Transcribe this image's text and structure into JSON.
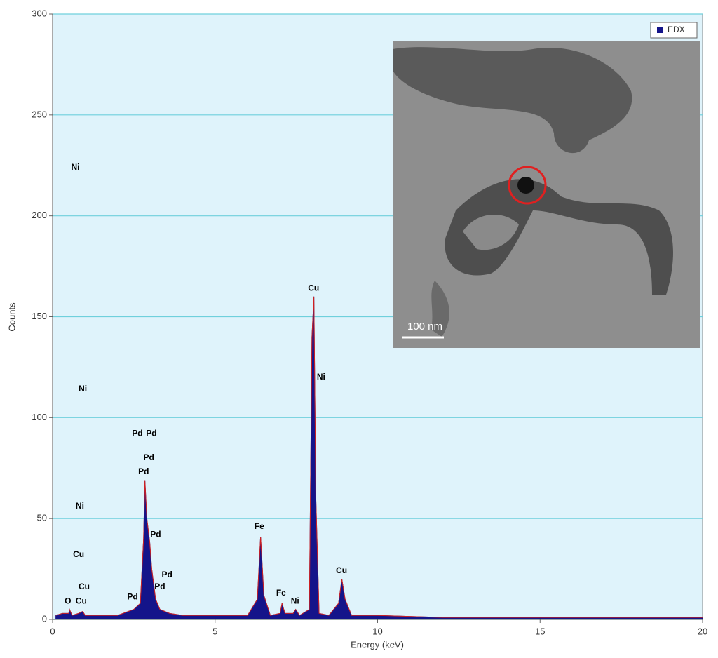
{
  "chart_data": {
    "type": "area",
    "x_label": "Energy (keV)",
    "y_label": "Counts",
    "xlim": [
      0,
      20
    ],
    "xticks": [
      0,
      5,
      10,
      15,
      20
    ],
    "ylim": [
      0,
      300
    ],
    "yticks": [
      0,
      50,
      100,
      150,
      200,
      250,
      300
    ],
    "grid": true,
    "legend": "top-right",
    "series": [
      {
        "name": "EDX",
        "color": "#14148a",
        "x": [
          0.1,
          0.3,
          0.5,
          0.52,
          0.6,
          0.8,
          0.93,
          1.0,
          1.5,
          2.0,
          2.5,
          2.7,
          2.8,
          2.84,
          2.9,
          2.99,
          3.05,
          3.17,
          3.3,
          3.6,
          4.0,
          5.0,
          6.0,
          6.3,
          6.4,
          6.5,
          6.7,
          7.0,
          7.06,
          7.15,
          7.4,
          7.48,
          7.6,
          7.9,
          7.98,
          8.04,
          8.1,
          8.2,
          8.5,
          8.8,
          8.9,
          9.0,
          9.2,
          10,
          12,
          14,
          16,
          18,
          20
        ],
        "values": [
          2,
          3,
          3,
          5,
          2,
          3,
          4,
          2,
          2,
          2,
          5,
          8,
          40,
          69,
          50,
          38,
          25,
          10,
          5,
          3,
          2,
          2,
          2,
          10,
          41,
          12,
          2,
          3,
          8,
          3,
          3,
          5,
          2,
          5,
          140,
          160,
          60,
          3,
          2,
          8,
          20,
          10,
          2,
          2,
          1,
          1,
          1,
          1,
          1
        ]
      }
    ],
    "annotations": [
      {
        "text": "Ni",
        "x": 0.7,
        "y": 224
      },
      {
        "text": "Ni",
        "x": 0.93,
        "y": 114
      },
      {
        "text": "Pd",
        "x": 2.61,
        "y": 92
      },
      {
        "text": "Pd",
        "x": 3.04,
        "y": 92
      },
      {
        "text": "Pd",
        "x": 2.96,
        "y": 80
      },
      {
        "text": "Pd",
        "x": 2.8,
        "y": 73
      },
      {
        "text": "Ni",
        "x": 0.84,
        "y": 56
      },
      {
        "text": "Cu",
        "x": 0.8,
        "y": 32
      },
      {
        "text": "Pd",
        "x": 3.17,
        "y": 42
      },
      {
        "text": "Pd",
        "x": 3.52,
        "y": 22
      },
      {
        "text": "Cu",
        "x": 0.97,
        "y": 16
      },
      {
        "text": "Pd",
        "x": 3.3,
        "y": 16
      },
      {
        "text": "Cu",
        "x": 0.88,
        "y": 9
      },
      {
        "text": "O",
        "x": 0.47,
        "y": 9
      },
      {
        "text": "Pd",
        "x": 2.46,
        "y": 11
      },
      {
        "text": "Fe",
        "x": 6.36,
        "y": 46
      },
      {
        "text": "Cu",
        "x": 8.03,
        "y": 164
      },
      {
        "text": "Ni",
        "x": 8.26,
        "y": 120
      },
      {
        "text": "Fe",
        "x": 7.03,
        "y": 13
      },
      {
        "text": "Ni",
        "x": 7.46,
        "y": 9
      },
      {
        "text": "Cu",
        "x": 8.89,
        "y": 24
      }
    ],
    "inset_scale_label": "100 nm"
  }
}
